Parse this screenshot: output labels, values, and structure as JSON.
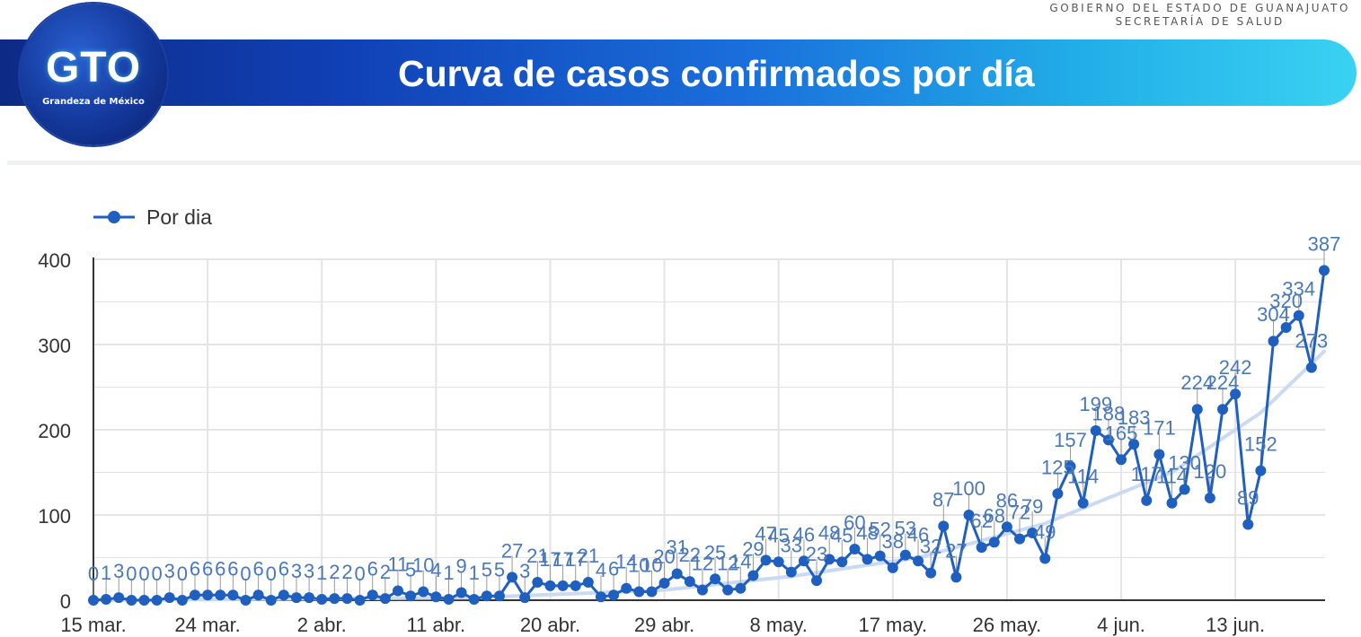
{
  "header": {
    "gov_line1": "GOBIERNO DEL ESTADO DE GUANAJUATO",
    "gov_line2": "SECRETARÍA DE SALUD",
    "title": "Curva de casos confirmados por día",
    "logo_text": "GTO",
    "logo_sub": "Grandeza de México"
  },
  "chart_data": {
    "type": "line",
    "legend": {
      "label": "Por dia",
      "placement": "top-left"
    },
    "series_color": "#1f5fbf",
    "trend_color": "#c9daf2",
    "ylim": [
      0,
      400
    ],
    "yticks": [
      0,
      100,
      200,
      300,
      400
    ],
    "grid": true,
    "x_labels": [
      {
        "index": 0,
        "label": "15 mar."
      },
      {
        "index": 9,
        "label": "24 mar."
      },
      {
        "index": 18,
        "label": "2 abr."
      },
      {
        "index": 27,
        "label": "11 abr."
      },
      {
        "index": 36,
        "label": "20 abr."
      },
      {
        "index": 45,
        "label": "29 abr."
      },
      {
        "index": 54,
        "label": "8 may."
      },
      {
        "index": 63,
        "label": "17 may."
      },
      {
        "index": 72,
        "label": "26 may."
      },
      {
        "index": 81,
        "label": "4 jun."
      },
      {
        "index": 90,
        "label": "13 jun."
      }
    ],
    "values": [
      0,
      1,
      3,
      0,
      0,
      0,
      3,
      0,
      6,
      6,
      6,
      6,
      0,
      6,
      0,
      6,
      3,
      3,
      1,
      2,
      2,
      0,
      6,
      2,
      11,
      5,
      10,
      4,
      1,
      9,
      1,
      5,
      5,
      27,
      3,
      21,
      17,
      17,
      17,
      21,
      4,
      6,
      14,
      10,
      10,
      20,
      31,
      22,
      12,
      25,
      12,
      14,
      29,
      47,
      45,
      33,
      46,
      23,
      48,
      45,
      60,
      48,
      52,
      38,
      53,
      46,
      32,
      87,
      27,
      100,
      62,
      68,
      86,
      72,
      79,
      49,
      125,
      157,
      114,
      199,
      188,
      165,
      183,
      117,
      171,
      114,
      130,
      224,
      120,
      224,
      242,
      89,
      152,
      304,
      320,
      334,
      273,
      387
    ],
    "trend": [
      [
        0,
        0
      ],
      [
        30,
        3
      ],
      [
        45,
        12
      ],
      [
        55,
        28
      ],
      [
        65,
        50
      ],
      [
        75,
        90
      ],
      [
        85,
        150
      ],
      [
        92,
        220
      ],
      [
        97,
        292
      ]
    ]
  }
}
